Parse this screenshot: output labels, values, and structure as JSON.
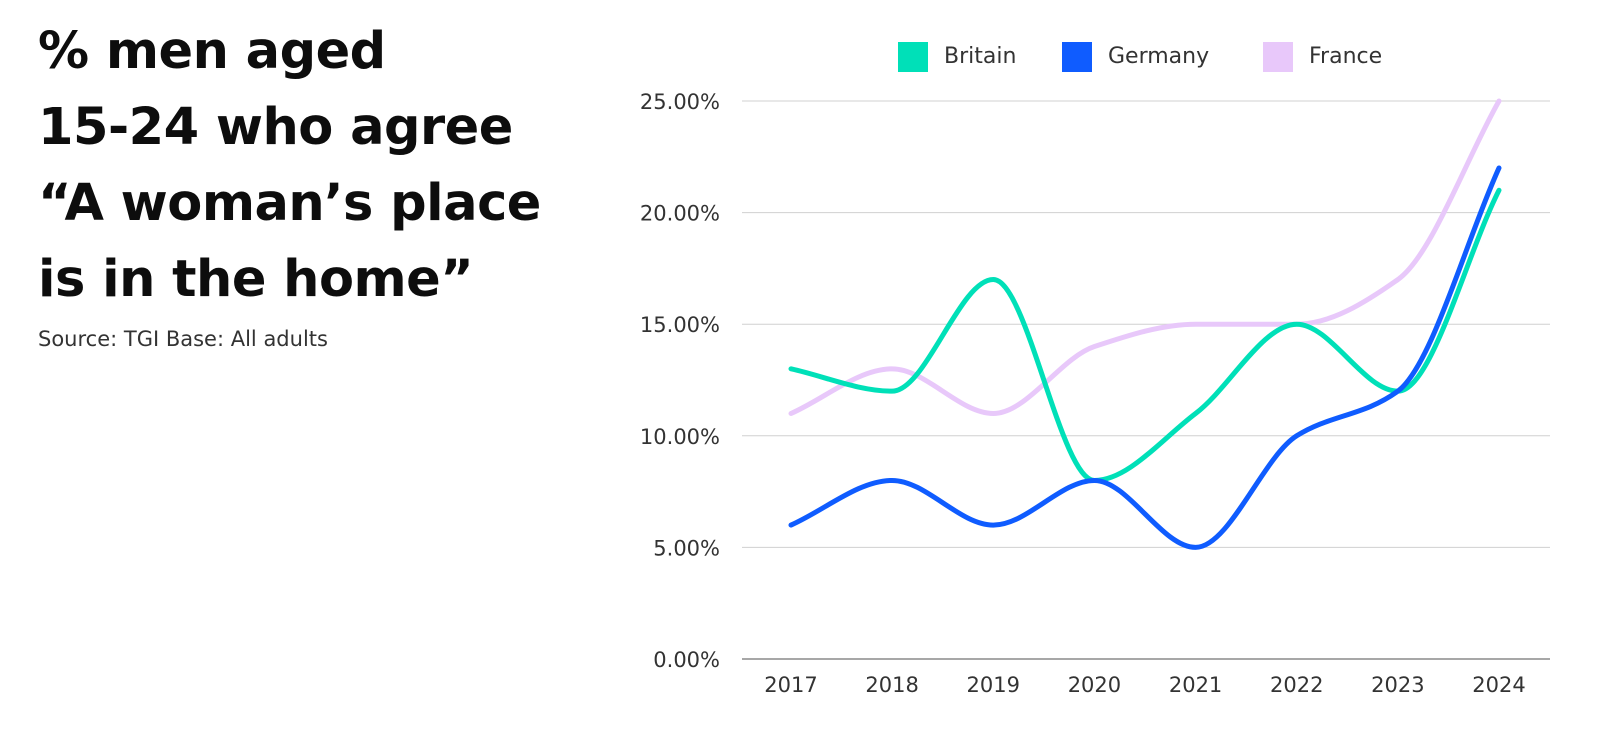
{
  "title": {
    "lines": [
      "% men aged",
      "15-24 who agree",
      "“A woman’s place",
      "is in the home”"
    ]
  },
  "source": "Source: TGI Base: All adults",
  "chart_data": {
    "type": "line",
    "categories": [
      "2017",
      "2018",
      "2019",
      "2020",
      "2021",
      "2022",
      "2023",
      "2024"
    ],
    "series": [
      {
        "name": "Britain",
        "color": "#00e0b8",
        "values": [
          13,
          12,
          17,
          8,
          11,
          15,
          12,
          21
        ]
      },
      {
        "name": "Germany",
        "color": "#0f5cff",
        "values": [
          6,
          8,
          6,
          8,
          5,
          10,
          12,
          22
        ]
      },
      {
        "name": "France",
        "color": "#e8c8fa",
        "values": [
          11,
          13,
          11,
          14,
          15,
          15,
          17,
          25
        ]
      }
    ],
    "ylim": [
      0,
      25
    ],
    "yticks": [
      0,
      5,
      10,
      15,
      20,
      25
    ],
    "ytick_labels": [
      "0.00%",
      "5.00%",
      "10.00%",
      "15.00%",
      "20.00%",
      "25.00%"
    ],
    "grid": true,
    "legend": "top",
    "smooth": true
  }
}
